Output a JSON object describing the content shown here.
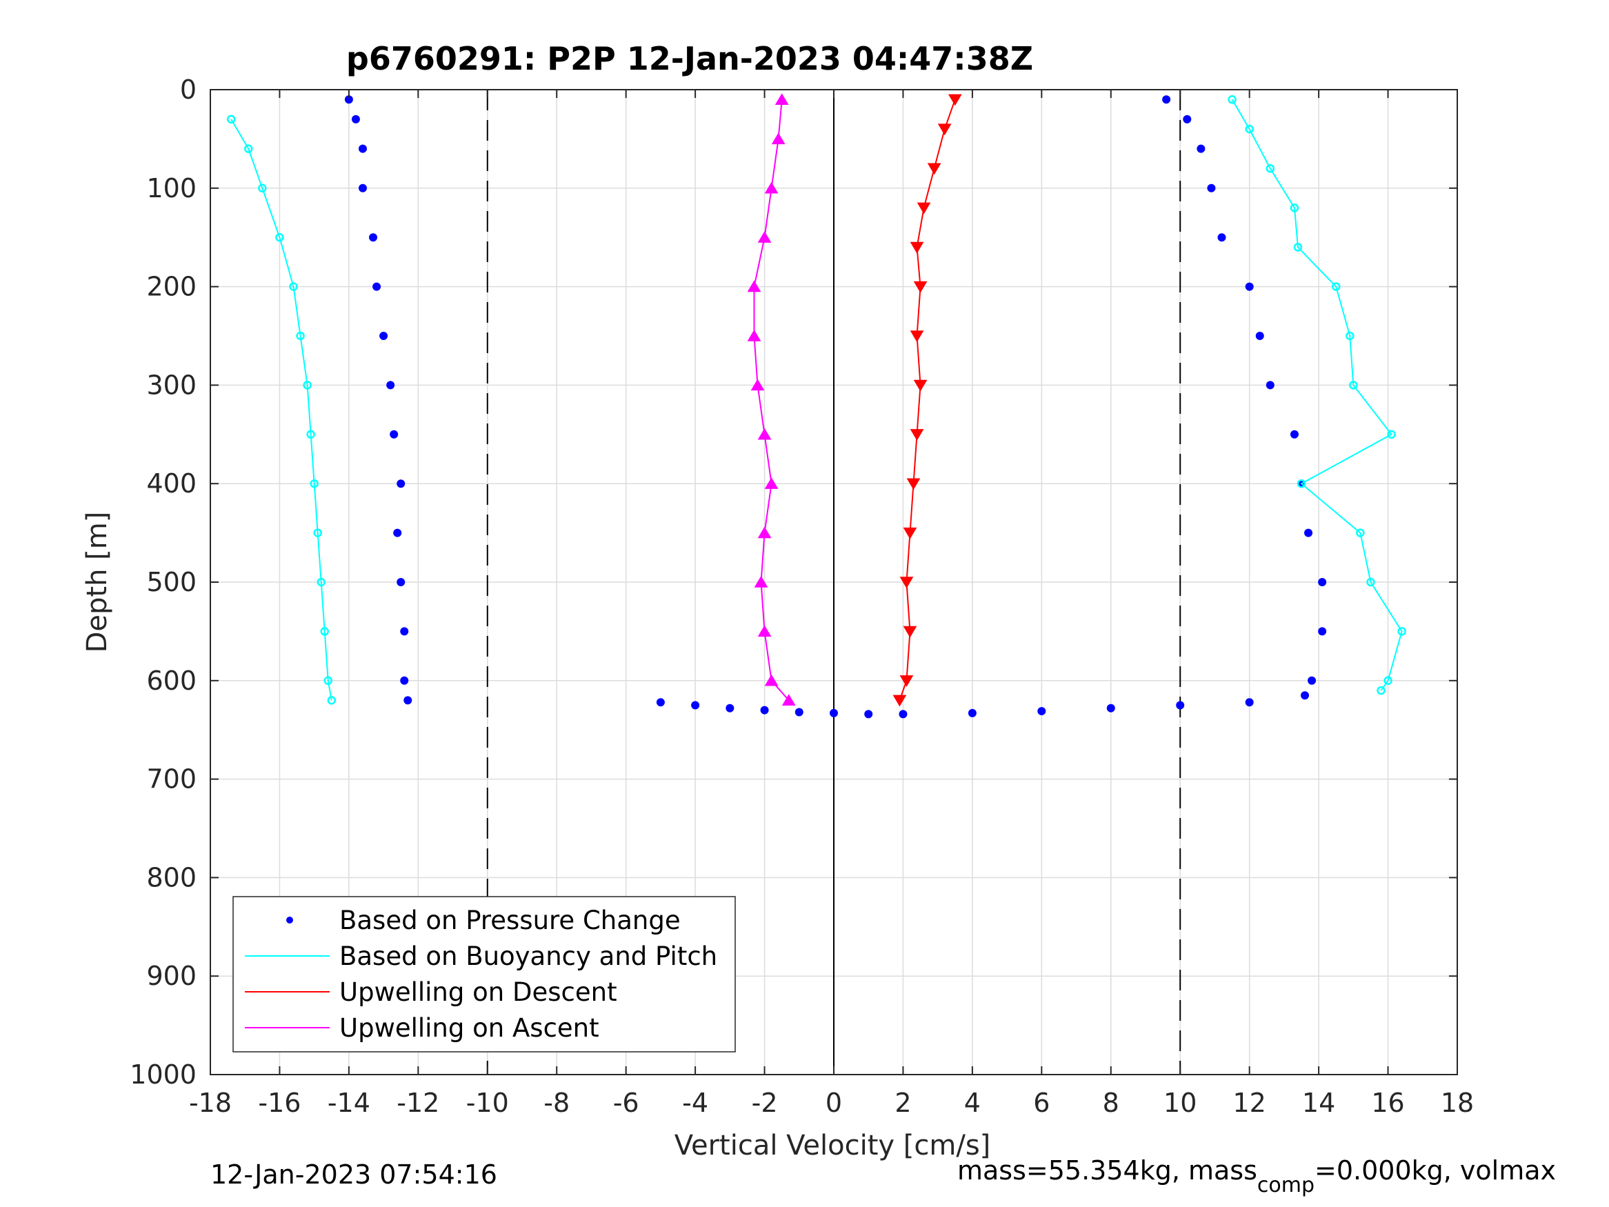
{
  "chart_data": {
    "type": "scatter",
    "title": "p6760291: P2P 12-Jan-2023 04:47:38Z",
    "xlabel": "Vertical Velocity [cm/s]",
    "ylabel": "Depth [m]",
    "xlim": [
      -18,
      18
    ],
    "ylim": [
      1000,
      0
    ],
    "y_reversed": true,
    "grid": true,
    "xticks": [
      "-18",
      "-16",
      "-14",
      "-12",
      "-10",
      "-8",
      "-6",
      "-4",
      "-2",
      "0",
      "2",
      "4",
      "6",
      "8",
      "10",
      "12",
      "14",
      "16",
      "18"
    ],
    "yticks": [
      "0",
      "100",
      "200",
      "300",
      "400",
      "500",
      "600",
      "700",
      "800",
      "900",
      "1000"
    ],
    "reference_lines": {
      "dashed_x": [
        -10,
        10
      ],
      "solid_x": [
        0
      ]
    },
    "legend": {
      "position": "bottom-left",
      "entries": [
        {
          "label": "Based on Pressure Change",
          "color": "#0000ff",
          "marker": "dot"
        },
        {
          "label": "Based on Buoyancy and Pitch",
          "color": "#00ffff",
          "marker": "line"
        },
        {
          "label": "Upwelling on Descent",
          "color": "#ff0000",
          "marker": "line"
        },
        {
          "label": "Upwelling on Ascent",
          "color": "#ff00ff",
          "marker": "line"
        }
      ]
    },
    "series": [
      {
        "name": "Based on Pressure Change",
        "color": "#0000ff",
        "style": "dots",
        "segments": [
          {
            "depth": [
              10,
              30,
              60,
              100,
              150,
              200,
              250,
              300,
              350,
              400,
              450,
              500,
              550,
              600,
              620
            ],
            "velocity": [
              -14.0,
              -13.8,
              -13.6,
              -13.6,
              -13.3,
              -13.2,
              -13.0,
              -12.8,
              -12.7,
              -12.5,
              -12.6,
              -12.5,
              -12.4,
              -12.4,
              -12.3
            ]
          },
          {
            "depth": [
              10,
              30,
              60,
              100,
              150,
              200,
              250,
              300,
              350,
              400,
              450,
              500,
              550,
              600,
              615
            ],
            "velocity": [
              9.6,
              10.2,
              10.6,
              10.9,
              11.2,
              12.0,
              12.3,
              12.6,
              13.3,
              13.5,
              13.7,
              14.1,
              14.1,
              13.8,
              13.6
            ]
          },
          {
            "depth": [
              622,
              625,
              628,
              630,
              632,
              633,
              634,
              634,
              633,
              631,
              628,
              625,
              622
            ],
            "velocity": [
              -5.0,
              -4.0,
              -3.0,
              -2.0,
              -1.0,
              0.0,
              1.0,
              2.0,
              4.0,
              6.0,
              8.0,
              10.0,
              12.0
            ]
          }
        ]
      },
      {
        "name": "Based on Buoyancy and Pitch",
        "color": "#00ffff",
        "style": "line-markers",
        "segments": [
          {
            "depth": [
              30,
              60,
              100,
              150,
              200,
              250,
              300,
              350,
              400,
              450,
              500,
              550,
              600,
              620
            ],
            "velocity": [
              -17.4,
              -16.9,
              -16.5,
              -16.0,
              -15.6,
              -15.4,
              -15.2,
              -15.1,
              -15.0,
              -14.9,
              -14.8,
              -14.7,
              -14.6,
              -14.5
            ]
          },
          {
            "depth": [
              10,
              40,
              80,
              120,
              160,
              200,
              250,
              300,
              350,
              400,
              450,
              500,
              550,
              600,
              610
            ],
            "velocity": [
              11.5,
              12.0,
              12.6,
              13.3,
              13.4,
              14.5,
              14.9,
              15.0,
              16.1,
              13.5,
              15.2,
              15.5,
              16.4,
              16.0,
              15.8
            ]
          }
        ]
      },
      {
        "name": "Upwelling on Descent",
        "color": "#ff0000",
        "style": "line-triangle-down",
        "depth": [
          10,
          40,
          80,
          120,
          160,
          200,
          250,
          300,
          350,
          400,
          450,
          500,
          550,
          600,
          620
        ],
        "velocity": [
          3.5,
          3.2,
          2.9,
          2.6,
          2.4,
          2.5,
          2.4,
          2.5,
          2.4,
          2.3,
          2.2,
          2.1,
          2.2,
          2.1,
          1.9
        ]
      },
      {
        "name": "Upwelling on Ascent",
        "color": "#ff00ff",
        "style": "line-triangle-up",
        "depth": [
          620,
          600,
          550,
          500,
          450,
          400,
          350,
          300,
          250,
          200,
          150,
          100,
          50,
          10
        ],
        "velocity": [
          -1.3,
          -1.8,
          -2.0,
          -2.1,
          -2.0,
          -1.8,
          -2.0,
          -2.2,
          -2.3,
          -2.3,
          -2.0,
          -1.8,
          -1.6,
          -1.5
        ]
      }
    ]
  },
  "footer": {
    "timestamp": "12-Jan-2023 07:54:16",
    "mass_label": "mass=55.354kg, mass",
    "mass_sub": "comp",
    "mass_tail": "=0.000kg, volmax"
  }
}
